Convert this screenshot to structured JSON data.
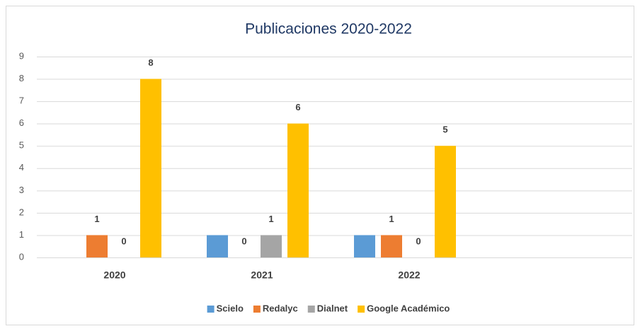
{
  "chart_data": {
    "type": "bar",
    "title": "Publicaciones 2020-2022",
    "categories": [
      "2020",
      "2021",
      "2022"
    ],
    "series": [
      {
        "name": "Scielo",
        "color": "#5b9bd5",
        "values": [
          0,
          1,
          1
        ],
        "data_labels": false
      },
      {
        "name": "Redalyc",
        "color": "#ed7d31",
        "values": [
          1,
          0,
          1
        ],
        "data_labels": true
      },
      {
        "name": "Dialnet",
        "color": "#a5a5a5",
        "values": [
          0,
          1,
          0
        ],
        "data_labels": true
      },
      {
        "name": "Google Académico",
        "color": "#ffc000",
        "values": [
          8,
          6,
          5
        ],
        "data_labels": true
      }
    ],
    "ylim": [
      0,
      9
    ],
    "yticks": [
      0,
      1,
      2,
      3,
      4,
      5,
      6,
      7,
      8,
      9
    ],
    "grid": true,
    "legend": "bottom"
  }
}
